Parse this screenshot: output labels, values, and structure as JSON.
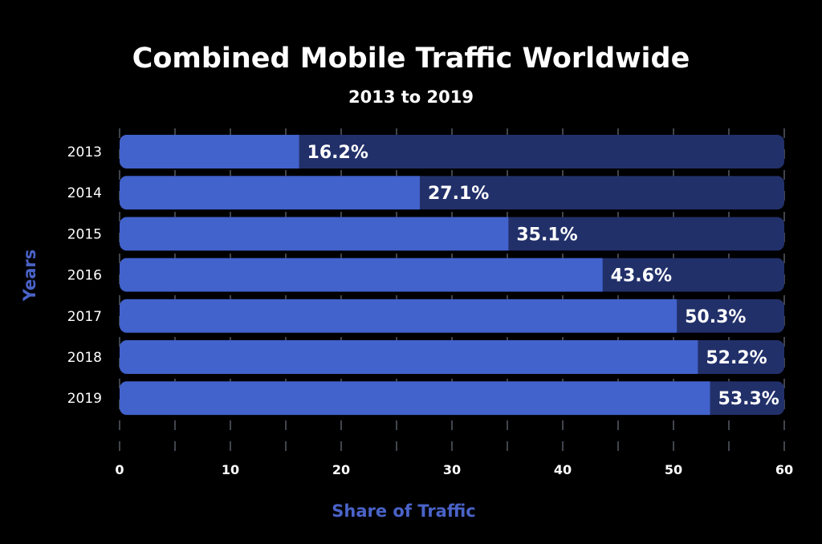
{
  "chart_data": {
    "type": "bar",
    "orientation": "horizontal",
    "title": "Combined Mobile Traffic Worldwide",
    "subtitle": "2013 to 2019",
    "xlabel": "Share of Traffic",
    "ylabel": "Years",
    "categories": [
      "2013",
      "2014",
      "2015",
      "2016",
      "2017",
      "2018",
      "2019"
    ],
    "values": [
      16.2,
      27.1,
      35.1,
      43.6,
      50.3,
      52.2,
      53.3
    ],
    "data_labels": [
      "16.2%",
      "27.1%",
      "35.1%",
      "43.6%",
      "50.3%",
      "52.2%",
      "53.3%"
    ],
    "xlim": [
      0,
      60
    ],
    "xticks": [
      "0",
      "10",
      "20",
      "30",
      "40",
      "50",
      "60"
    ],
    "xtick_values": [
      0,
      10,
      20,
      30,
      40,
      50,
      60
    ],
    "grid": true,
    "grid_step": 5,
    "colors": {
      "bar": "#4262cc",
      "track": "#22306a",
      "axis_label": "#4a63c8",
      "grid": "#555a66",
      "background": "#000000",
      "text": "#ffffff"
    }
  }
}
